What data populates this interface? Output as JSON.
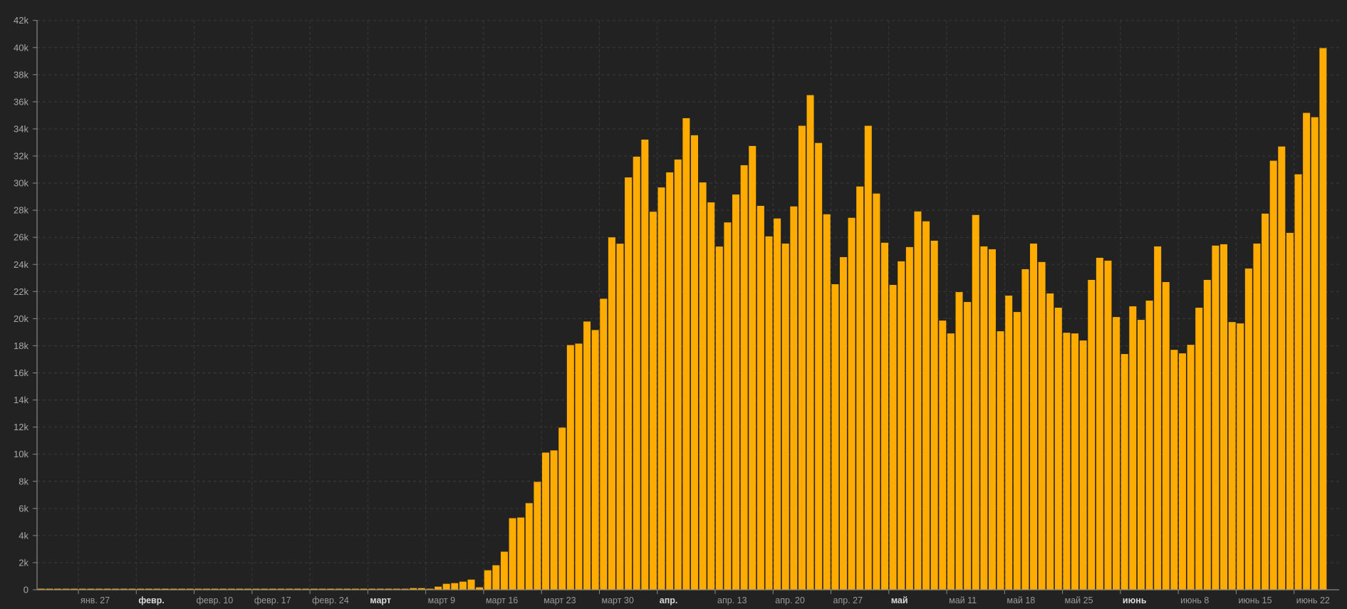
{
  "chart_data": {
    "type": "bar",
    "title": "",
    "xlabel": "",
    "ylabel": "",
    "bar_color": "#ffab00",
    "background": "#222222",
    "grid": true,
    "legend": "none",
    "ylim": [
      0,
      42000
    ],
    "y_ticks": [
      {
        "value": 0,
        "label": "0"
      },
      {
        "value": 2000,
        "label": "2k"
      },
      {
        "value": 4000,
        "label": "4k"
      },
      {
        "value": 6000,
        "label": "6k"
      },
      {
        "value": 8000,
        "label": "8k"
      },
      {
        "value": 10000,
        "label": "10k"
      },
      {
        "value": 12000,
        "label": "12k"
      },
      {
        "value": 14000,
        "label": "14k"
      },
      {
        "value": 16000,
        "label": "16k"
      },
      {
        "value": 18000,
        "label": "18k"
      },
      {
        "value": 20000,
        "label": "20k"
      },
      {
        "value": 22000,
        "label": "22k"
      },
      {
        "value": 24000,
        "label": "24k"
      },
      {
        "value": 26000,
        "label": "26k"
      },
      {
        "value": 28000,
        "label": "28k"
      },
      {
        "value": 30000,
        "label": "30k"
      },
      {
        "value": 32000,
        "label": "32k"
      },
      {
        "value": 34000,
        "label": "34k"
      },
      {
        "value": 36000,
        "label": "36k"
      },
      {
        "value": 38000,
        "label": "38k"
      },
      {
        "value": 40000,
        "label": "40k"
      },
      {
        "value": 42000,
        "label": "42k"
      }
    ],
    "x_ticks": [
      {
        "date": "2020-01-27",
        "label": "янв. 27",
        "bold": false
      },
      {
        "date": "2020-02-03",
        "label": "февр.",
        "bold": true
      },
      {
        "date": "2020-02-10",
        "label": "февр. 10",
        "bold": false
      },
      {
        "date": "2020-02-17",
        "label": "февр. 17",
        "bold": false
      },
      {
        "date": "2020-02-24",
        "label": "февр. 24",
        "bold": false
      },
      {
        "date": "2020-03-02",
        "label": "март",
        "bold": true
      },
      {
        "date": "2020-03-09",
        "label": "март 9",
        "bold": false
      },
      {
        "date": "2020-03-16",
        "label": "март 16",
        "bold": false
      },
      {
        "date": "2020-03-23",
        "label": "март 23",
        "bold": false
      },
      {
        "date": "2020-03-30",
        "label": "март 30",
        "bold": false
      },
      {
        "date": "2020-04-06",
        "label": "апр.",
        "bold": true
      },
      {
        "date": "2020-04-13",
        "label": "апр. 13",
        "bold": false
      },
      {
        "date": "2020-04-20",
        "label": "апр. 20",
        "bold": false
      },
      {
        "date": "2020-04-27",
        "label": "апр. 27",
        "bold": false
      },
      {
        "date": "2020-05-04",
        "label": "май",
        "bold": true
      },
      {
        "date": "2020-05-11",
        "label": "май 11",
        "bold": false
      },
      {
        "date": "2020-05-18",
        "label": "май 18",
        "bold": false
      },
      {
        "date": "2020-05-25",
        "label": "май 25",
        "bold": false
      },
      {
        "date": "2020-06-01",
        "label": "июнь",
        "bold": true
      },
      {
        "date": "2020-06-08",
        "label": "июнь 8",
        "bold": false
      },
      {
        "date": "2020-06-15",
        "label": "июнь 15",
        "bold": false
      },
      {
        "date": "2020-06-22",
        "label": "июнь 22",
        "bold": false
      }
    ],
    "x": [
      "2020-01-22",
      "2020-01-23",
      "2020-01-24",
      "2020-01-25",
      "2020-01-26",
      "2020-01-27",
      "2020-01-28",
      "2020-01-29",
      "2020-01-30",
      "2020-01-31",
      "2020-02-01",
      "2020-02-02",
      "2020-02-03",
      "2020-02-04",
      "2020-02-05",
      "2020-02-06",
      "2020-02-07",
      "2020-02-08",
      "2020-02-09",
      "2020-02-10",
      "2020-02-11",
      "2020-02-12",
      "2020-02-13",
      "2020-02-14",
      "2020-02-15",
      "2020-02-16",
      "2020-02-17",
      "2020-02-18",
      "2020-02-19",
      "2020-02-20",
      "2020-02-21",
      "2020-02-22",
      "2020-02-23",
      "2020-02-24",
      "2020-02-25",
      "2020-02-26",
      "2020-02-27",
      "2020-02-28",
      "2020-02-29",
      "2020-03-01",
      "2020-03-02",
      "2020-03-03",
      "2020-03-04",
      "2020-03-05",
      "2020-03-06",
      "2020-03-07",
      "2020-03-08",
      "2020-03-09",
      "2020-03-10",
      "2020-03-11",
      "2020-03-12",
      "2020-03-13",
      "2020-03-14",
      "2020-03-15",
      "2020-03-16",
      "2020-03-17",
      "2020-03-18",
      "2020-03-19",
      "2020-03-20",
      "2020-03-21",
      "2020-03-22",
      "2020-03-23",
      "2020-03-24",
      "2020-03-25",
      "2020-03-26",
      "2020-03-27",
      "2020-03-28",
      "2020-03-29",
      "2020-03-30",
      "2020-03-31",
      "2020-04-01",
      "2020-04-02",
      "2020-04-03",
      "2020-04-04",
      "2020-04-05",
      "2020-04-06",
      "2020-04-07",
      "2020-04-08",
      "2020-04-09",
      "2020-04-10",
      "2020-04-11",
      "2020-04-12",
      "2020-04-13",
      "2020-04-14",
      "2020-04-15",
      "2020-04-16",
      "2020-04-17",
      "2020-04-18",
      "2020-04-19",
      "2020-04-20",
      "2020-04-21",
      "2020-04-22",
      "2020-04-23",
      "2020-04-24",
      "2020-04-25",
      "2020-04-26",
      "2020-04-27",
      "2020-04-28",
      "2020-04-29",
      "2020-04-30",
      "2020-05-01",
      "2020-05-02",
      "2020-05-03",
      "2020-05-04",
      "2020-05-05",
      "2020-05-06",
      "2020-05-07",
      "2020-05-08",
      "2020-05-09",
      "2020-05-10",
      "2020-05-11",
      "2020-05-12",
      "2020-05-13",
      "2020-05-14",
      "2020-05-15",
      "2020-05-16",
      "2020-05-17",
      "2020-05-18",
      "2020-05-19",
      "2020-05-20",
      "2020-05-21",
      "2020-05-22",
      "2020-05-23",
      "2020-05-24",
      "2020-05-25",
      "2020-05-26",
      "2020-05-27",
      "2020-05-28",
      "2020-05-29",
      "2020-05-30",
      "2020-05-31",
      "2020-06-01",
      "2020-06-02",
      "2020-06-03",
      "2020-06-04",
      "2020-06-05",
      "2020-06-06",
      "2020-06-07",
      "2020-06-08",
      "2020-06-09",
      "2020-06-10",
      "2020-06-11",
      "2020-06-12",
      "2020-06-13",
      "2020-06-14",
      "2020-06-15",
      "2020-06-16",
      "2020-06-17",
      "2020-06-18",
      "2020-06-19",
      "2020-06-20",
      "2020-06-21",
      "2020-06-22",
      "2020-06-23",
      "2020-06-24",
      "2020-06-25"
    ],
    "values": [
      0,
      0,
      0,
      0,
      0,
      0,
      0,
      0,
      0,
      0,
      0,
      0,
      0,
      0,
      0,
      0,
      0,
      0,
      0,
      0,
      0,
      0,
      0,
      0,
      0,
      0,
      0,
      0,
      0,
      0,
      0,
      0,
      0,
      0,
      0,
      0,
      0,
      0,
      0,
      10,
      20,
      40,
      50,
      50,
      70,
      120,
      120,
      70,
      230,
      440,
      490,
      600,
      750,
      180,
      1440,
      1810,
      2810,
      5280,
      5330,
      6390,
      7960,
      10120,
      10280,
      11960,
      18050,
      18160,
      19790,
      19160,
      21470,
      26000,
      25530,
      30420,
      31950,
      33210,
      27890,
      29680,
      30790,
      31740,
      34790,
      33530,
      30050,
      28580,
      25320,
      27100,
      29160,
      31320,
      32740,
      28320,
      26070,
      27390,
      25540,
      28280,
      34230,
      36490,
      32960,
      27700,
      22540,
      24540,
      27440,
      29750,
      34230,
      29230,
      25600,
      22490,
      24230,
      25280,
      27910,
      27180,
      25750,
      19860,
      18910,
      21960,
      21230,
      27650,
      25330,
      25120,
      19070,
      21700,
      20490,
      23650,
      25540,
      24180,
      21860,
      20810,
      18960,
      18910,
      18390,
      22860,
      24490,
      24280,
      20120,
      17390,
      20910,
      19910,
      21330,
      25330,
      22700,
      17700,
      17440,
      18070,
      20810,
      22860,
      25390,
      25490,
      19750,
      19650,
      23700,
      25540,
      27750,
      31650,
      32700,
      26330,
      30650,
      35180,
      34860,
      39960
    ]
  }
}
